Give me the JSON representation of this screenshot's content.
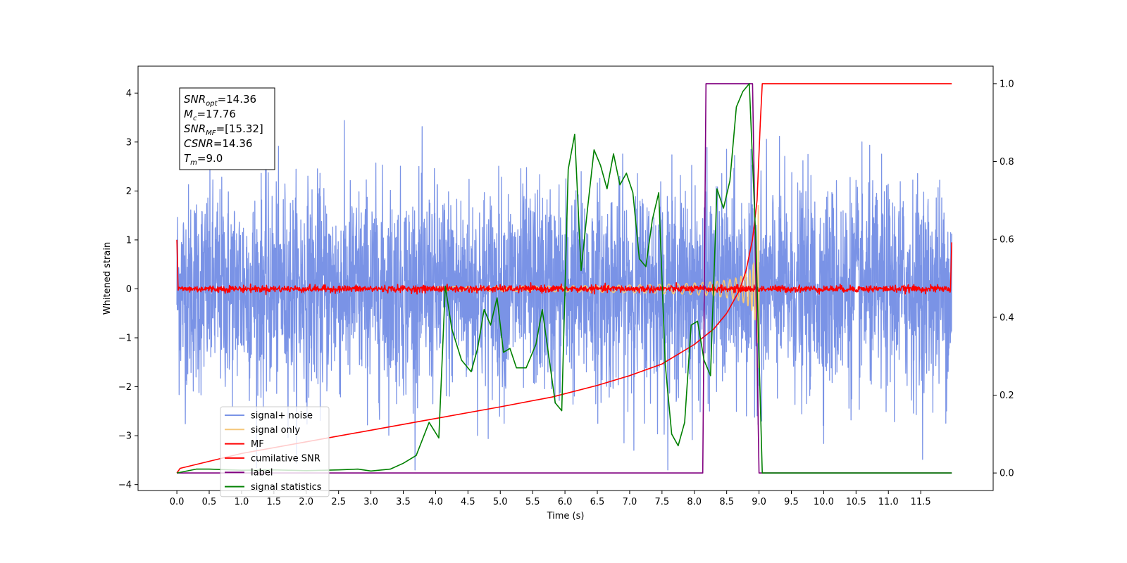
{
  "chart_data": {
    "type": "line",
    "title": "",
    "xlabel": "Time (s)",
    "ylabel": "Whitened strain",
    "xlim": [
      -0.6,
      12.62
    ],
    "ylim": [
      -4.12,
      4.55
    ],
    "y2lim": [
      -0.045,
      1.045
    ],
    "x_ticks": [
      "0.0",
      "0.5",
      "1.0",
      "1.5",
      "2.0",
      "2.5",
      "3.0",
      "3.5",
      "4.0",
      "4.5",
      "5.0",
      "5.5",
      "6.0",
      "6.5",
      "7.0",
      "7.5",
      "8.0",
      "8.5",
      "9.0",
      "9.5",
      "10.0",
      "10.5",
      "11.0",
      "11.5"
    ],
    "y_ticks": [
      "4",
      "3",
      "2",
      "1",
      "0",
      "−1",
      "−2",
      "−3",
      "−4"
    ],
    "y2_ticks": [
      "1.0",
      "0.8",
      "0.6",
      "0.4",
      "0.2",
      "0.0"
    ],
    "grid": false,
    "legend_position": "lower-left",
    "annotations": [
      {
        "base": "SNR",
        "sub": "opt",
        "value": "=14.36"
      },
      {
        "base": "M",
        "sub": "c",
        "value": "=17.76"
      },
      {
        "base": "SNR",
        "sub": "MF",
        "value": "=[15.32]"
      },
      {
        "base": "CSNR",
        "sub": "",
        "value": "=14.36"
      },
      {
        "base": "T",
        "sub": "m",
        "value": "=9.0"
      }
    ],
    "series": [
      {
        "name": "signal+ noise",
        "color": "#7a93e6",
        "axis": "left",
        "kind": "noise",
        "amplitude_range": [
          -3.7,
          3.6
        ],
        "x_range": [
          0.0,
          11.98
        ]
      },
      {
        "name": "signal only",
        "color": "#f5c77a",
        "axis": "left",
        "kind": "chirp",
        "merger_time": 9.0,
        "peak_amplitude": 1.75
      },
      {
        "name": "MF",
        "color": "#ff0000",
        "axis": "left",
        "kind": "flat-noise",
        "level": 0.0,
        "jitter": 0.07,
        "edge_values": [
          1.0,
          0.95
        ]
      },
      {
        "name": "cumilative SNR",
        "color": "#ff0000",
        "axis": "right",
        "x": [
          0.0,
          0.05,
          1.0,
          2.0,
          3.0,
          4.0,
          5.0,
          5.8,
          6.5,
          7.0,
          7.5,
          8.0,
          8.3,
          8.5,
          8.7,
          8.8,
          8.9,
          8.97,
          9.02,
          9.05,
          11.98
        ],
        "y": [
          0.0,
          0.012,
          0.05,
          0.08,
          0.11,
          0.14,
          0.17,
          0.195,
          0.225,
          0.25,
          0.28,
          0.33,
          0.37,
          0.41,
          0.47,
          0.52,
          0.6,
          0.7,
          0.9,
          1.0,
          1.0
        ]
      },
      {
        "name": "label",
        "color": "#800080",
        "axis": "right",
        "x": [
          0.0,
          8.13,
          8.18,
          8.9,
          9.0,
          11.98
        ],
        "y": [
          0.0,
          0.0,
          1.0,
          1.0,
          0.0,
          0.0
        ]
      },
      {
        "name": "signal statistics",
        "color": "#008000",
        "axis": "right",
        "x": [
          0.0,
          0.3,
          0.5,
          1.0,
          1.5,
          2.0,
          2.5,
          2.8,
          3.0,
          3.3,
          3.5,
          3.7,
          3.9,
          4.05,
          4.15,
          4.25,
          4.4,
          4.55,
          4.65,
          4.75,
          4.85,
          4.95,
          5.05,
          5.15,
          5.25,
          5.4,
          5.55,
          5.65,
          5.75,
          5.85,
          5.95,
          6.05,
          6.15,
          6.25,
          6.35,
          6.45,
          6.55,
          6.65,
          6.75,
          6.85,
          6.95,
          7.05,
          7.15,
          7.25,
          7.35,
          7.45,
          7.55,
          7.65,
          7.75,
          7.85,
          7.95,
          8.05,
          8.15,
          8.25,
          8.35,
          8.45,
          8.55,
          8.65,
          8.75,
          8.85,
          8.95,
          9.05,
          9.1,
          11.98
        ],
        "y": [
          0.0,
          0.01,
          0.01,
          0.007,
          0.008,
          0.006,
          0.008,
          0.01,
          0.005,
          0.01,
          0.025,
          0.045,
          0.13,
          0.09,
          0.48,
          0.37,
          0.29,
          0.26,
          0.32,
          0.42,
          0.38,
          0.45,
          0.31,
          0.32,
          0.27,
          0.27,
          0.33,
          0.42,
          0.3,
          0.18,
          0.16,
          0.78,
          0.87,
          0.52,
          0.68,
          0.83,
          0.79,
          0.73,
          0.82,
          0.74,
          0.77,
          0.72,
          0.55,
          0.53,
          0.65,
          0.72,
          0.28,
          0.1,
          0.07,
          0.13,
          0.38,
          0.39,
          0.29,
          0.25,
          0.73,
          0.68,
          0.75,
          0.94,
          0.98,
          1.0,
          0.6,
          0.0,
          0.0,
          0.0
        ]
      }
    ]
  }
}
